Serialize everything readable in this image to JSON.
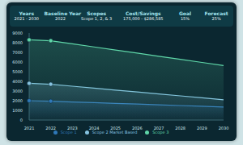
{
  "header": {
    "cells": [
      {
        "label": "Years",
        "value": "2021 - 2030"
      },
      {
        "label": "Baseline Year",
        "value": "2022"
      },
      {
        "label": "Scopes",
        "value": "Scope 1, 2, & 3"
      },
      {
        "label": "Cost/Savings",
        "value": "175,000 - $286,585"
      },
      {
        "label": "Goal",
        "value": "15%"
      },
      {
        "label": "Forecast",
        "value": "25%"
      }
    ]
  },
  "chart_data": {
    "type": "area",
    "categories": [
      "2021",
      "2022",
      "2023",
      "2024",
      "2025",
      "2026",
      "2027",
      "2028",
      "2029",
      "2030"
    ],
    "series": [
      {
        "name": "Scope 1",
        "color": "#2f78b8",
        "marker": "circle",
        "values": [
          2000,
          1950,
          1870,
          1800,
          1720,
          1650,
          1570,
          1500,
          1420,
          1350
        ]
      },
      {
        "name": "Scope 2 Market Based",
        "color": "#86c3e0",
        "marker": "circle",
        "values": [
          3800,
          3700,
          3500,
          3300,
          3100,
          2900,
          2700,
          2500,
          2300,
          2100
        ]
      },
      {
        "name": "Scope 3",
        "color": "#5fd6a8",
        "marker": "circle",
        "values": [
          8300,
          8200,
          7880,
          7560,
          7240,
          6920,
          6600,
          6280,
          5960,
          5640
        ]
      }
    ],
    "ylim": [
      0,
      9000
    ],
    "yticks": [
      0,
      1000,
      2000,
      3000,
      4000,
      5000,
      6000,
      7000,
      8000,
      9000
    ],
    "grid": false,
    "legend": "bottom"
  }
}
